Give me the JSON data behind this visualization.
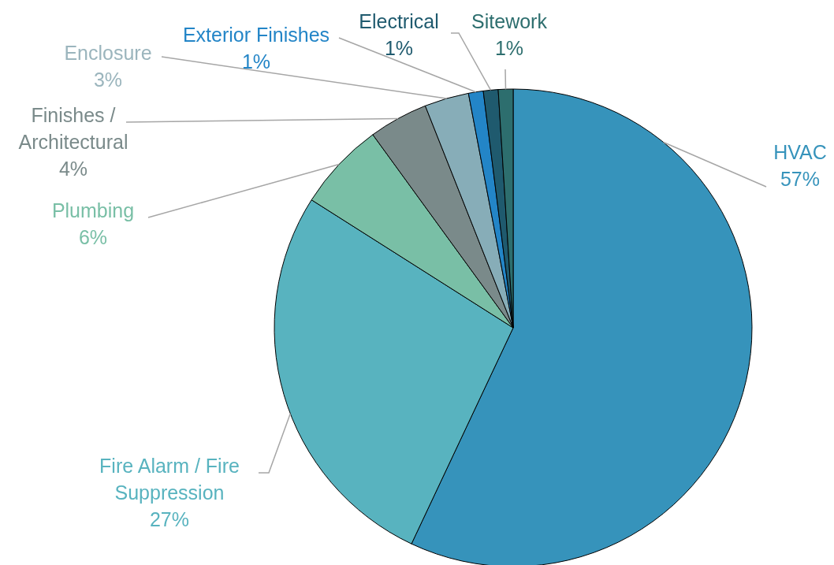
{
  "chart_data": {
    "type": "pie",
    "categories": [
      "HVAC",
      "Fire Alarm / Fire Suppression",
      "Plumbing",
      "Finishes / Architectural",
      "Enclosure",
      "Exterior Finishes",
      "Electrical",
      "Sitework"
    ],
    "values": [
      57,
      27,
      6,
      4,
      3,
      1,
      1,
      1
    ],
    "value_labels": [
      "57%",
      "27%",
      "6%",
      "4%",
      "3%",
      "1%",
      "1%",
      "1%"
    ],
    "colors": [
      "#3693bb",
      "#58b3bf",
      "#79bfa6",
      "#7a8a8a",
      "#87adb8",
      "#2385c7",
      "#1f5a6e",
      "#2d6e6e"
    ]
  }
}
